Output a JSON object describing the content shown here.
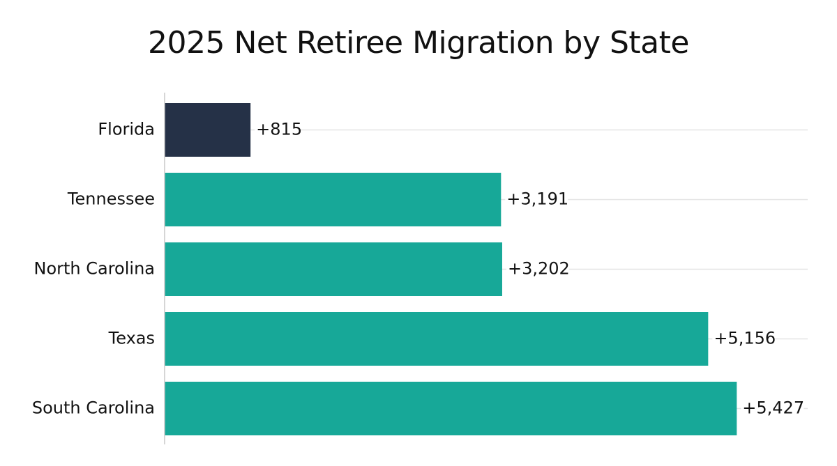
{
  "chart_data": {
    "type": "bar",
    "orientation": "horizontal",
    "title": "2025 Net Retiree Migration by State",
    "xlabel": "",
    "ylabel": "",
    "categories": [
      "Florida",
      "Tennessee",
      "North Carolina",
      "Texas",
      "South Carolina"
    ],
    "values": [
      815,
      3191,
      3202,
      5156,
      5427
    ],
    "value_labels": [
      "+815",
      "+3,191",
      "+3,202",
      "+5,156",
      "+5,427"
    ],
    "bar_colors": [
      "#253147",
      "#17a898",
      "#17a898",
      "#17a898",
      "#17a898"
    ],
    "xlim": [
      0,
      6100
    ],
    "grid": true,
    "legend": "none"
  },
  "colors": {
    "highlight": "#253147",
    "accent": "#17a898",
    "gridline": "#e4e4e4",
    "axis": "#c8c8c8",
    "text": "#111111"
  }
}
